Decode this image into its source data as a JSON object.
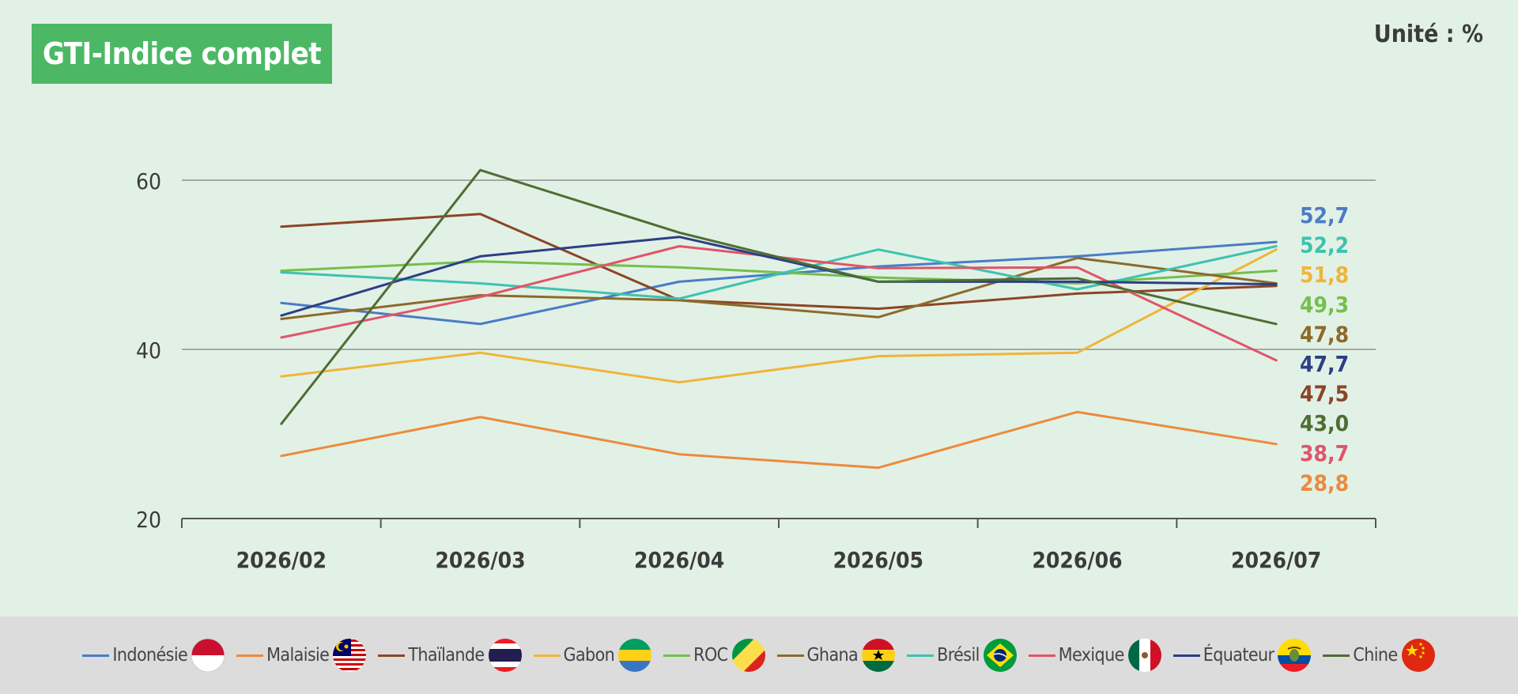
{
  "header": {
    "title": "GTI-Indice complet",
    "unit": "Unité : %"
  },
  "chart_data": {
    "type": "line",
    "title": "GTI-Indice complet",
    "ylim": [
      20,
      60
    ],
    "yticks": [
      20,
      40,
      60
    ],
    "grid": true,
    "legend_position": "bottom",
    "categories": [
      "2026/02",
      "2026/03",
      "2026/04",
      "2026/05",
      "2026/06",
      "2026/07"
    ],
    "series": [
      {
        "name": "Indonésie",
        "color": "#4a7cc6",
        "flag": "indonesia-flag-icon",
        "values": [
          45.5,
          43.0,
          48.0,
          49.8,
          51.0,
          52.7
        ]
      },
      {
        "name": "Malaisie",
        "color": "#ec8a3e",
        "flag": "malaysia-flag-icon",
        "values": [
          27.4,
          32.0,
          27.6,
          26.0,
          32.6,
          28.8
        ]
      },
      {
        "name": "Thaïlande",
        "color": "#8b4526",
        "flag": "thailand-flag-icon",
        "values": [
          54.5,
          56.0,
          45.8,
          44.8,
          46.6,
          47.5
        ]
      },
      {
        "name": "Gabon",
        "color": "#efb53a",
        "flag": "gabon-flag-icon",
        "values": [
          36.8,
          39.6,
          36.1,
          39.2,
          39.6,
          51.8
        ]
      },
      {
        "name": "ROC",
        "color": "#74bf4d",
        "flag": "roc-flag-icon",
        "values": [
          49.3,
          50.4,
          49.7,
          48.5,
          47.8,
          49.3
        ]
      },
      {
        "name": "Ghana",
        "color": "#8c6a2b",
        "flag": "ghana-flag-icon",
        "values": [
          43.6,
          46.4,
          45.8,
          43.8,
          50.8,
          47.8
        ]
      },
      {
        "name": "Brésil",
        "color": "#3ec2b0",
        "flag": "brazil-flag-icon",
        "values": [
          49.1,
          47.8,
          46.0,
          51.8,
          47.1,
          52.2
        ]
      },
      {
        "name": "Mexique",
        "color": "#e0556a",
        "flag": "mexico-flag-icon",
        "values": [
          41.4,
          46.2,
          52.2,
          49.6,
          49.7,
          38.7
        ]
      },
      {
        "name": "Équateur",
        "color": "#2c3f86",
        "flag": "ecuador-flag-icon",
        "values": [
          44.0,
          51.0,
          53.3,
          48.0,
          48.0,
          47.7
        ]
      },
      {
        "name": "Chine",
        "color": "#4d6e34",
        "flag": "china-flag-icon",
        "values": [
          31.2,
          61.2,
          53.8,
          48.0,
          48.4,
          43.0
        ]
      }
    ],
    "end_labels": [
      {
        "text": "52,7",
        "color": "#4a7cc6"
      },
      {
        "text": "52,2",
        "color": "#3ec2b0"
      },
      {
        "text": "51,8",
        "color": "#efb53a"
      },
      {
        "text": "49,3",
        "color": "#74bf4d"
      },
      {
        "text": "47,8",
        "color": "#8c6a2b"
      },
      {
        "text": "47,7",
        "color": "#2c3f86"
      },
      {
        "text": "47,5",
        "color": "#8b4526"
      },
      {
        "text": "43,0",
        "color": "#4d6e34"
      },
      {
        "text": "38,7",
        "color": "#e0556a"
      },
      {
        "text": "28,8",
        "color": "#ec8a3e"
      }
    ]
  }
}
